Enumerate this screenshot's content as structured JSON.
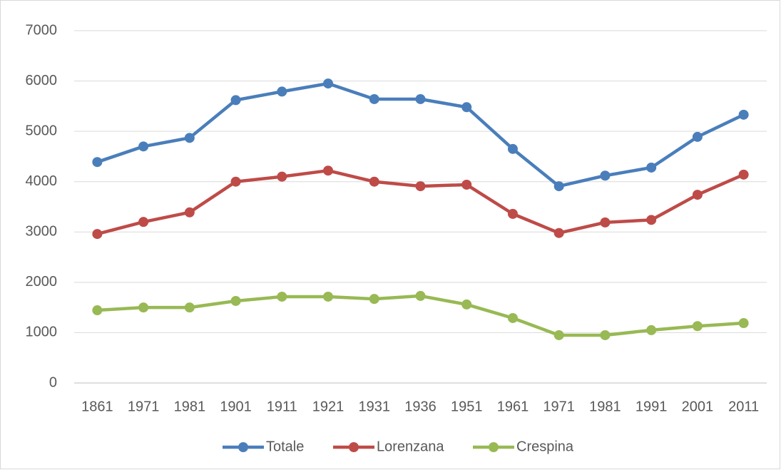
{
  "chart_data": {
    "type": "line",
    "categories": [
      "1861",
      "1971",
      "1981",
      "1901",
      "1911",
      "1921",
      "1931",
      "1936",
      "1951",
      "1961",
      "1971",
      "1981",
      "1991",
      "2001",
      "2011"
    ],
    "series": [
      {
        "name": "Totale",
        "color": "#4a7ebb",
        "values": [
          4390,
          4700,
          4870,
          5620,
          5790,
          5950,
          5640,
          5640,
          5480,
          4650,
          3910,
          4120,
          4280,
          4890,
          5330
        ]
      },
      {
        "name": "Lorenzana",
        "color": "#be4b48",
        "values": [
          2960,
          3200,
          3390,
          4000,
          4100,
          4220,
          4000,
          3910,
          3940,
          3360,
          2980,
          3190,
          3240,
          3740,
          4140
        ]
      },
      {
        "name": "Crespina",
        "color": "#98b954",
        "values": [
          1445,
          1500,
          1500,
          1630,
          1715,
          1715,
          1670,
          1730,
          1560,
          1290,
          950,
          950,
          1050,
          1130,
          1190
        ]
      }
    ],
    "ylim": [
      0,
      7000
    ],
    "yticks": [
      0,
      1000,
      2000,
      3000,
      4000,
      5000,
      6000,
      7000
    ],
    "grid": true,
    "legend": "bottom"
  }
}
